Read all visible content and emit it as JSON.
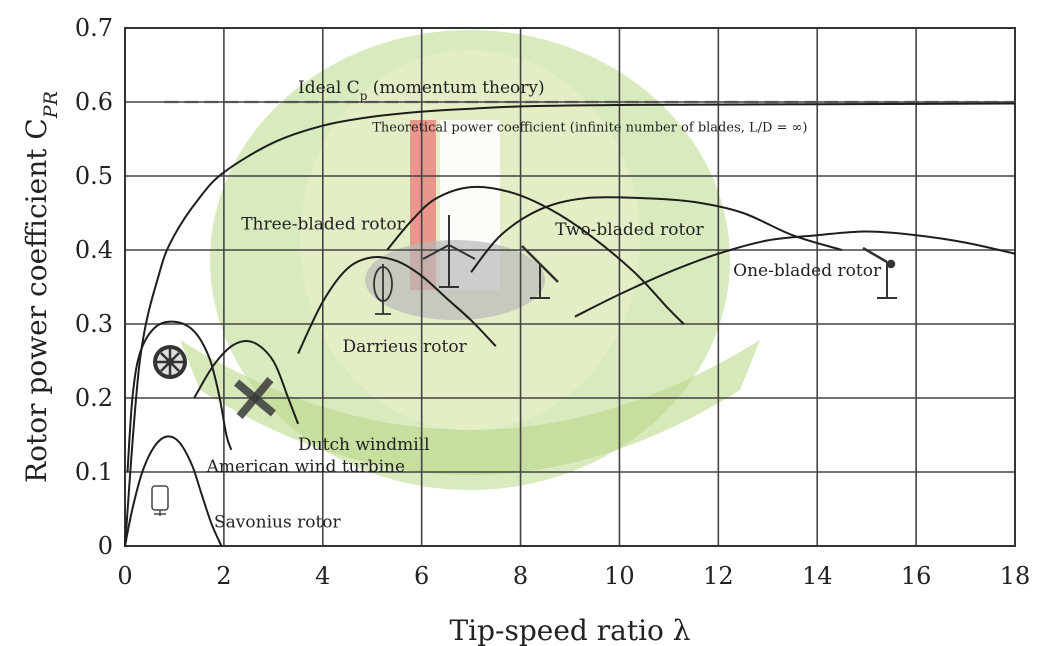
{
  "chart_data": {
    "type": "line",
    "xlabel": "Tip-speed ratio λ",
    "ylabel": "Rotor power coefficient C",
    "ylabel_sub": "PR",
    "xlim": [
      0,
      18
    ],
    "ylim": [
      0,
      0.7
    ],
    "x_ticks": [
      "0",
      "2",
      "4",
      "6",
      "8",
      "10",
      "12",
      "14",
      "16",
      "18"
    ],
    "y_ticks": [
      "0",
      "0.1",
      "0.2",
      "0.3",
      "0.4",
      "0.5",
      "0.6",
      "0.7"
    ],
    "grid": true,
    "reference_lines": [
      {
        "label": "Ideal C",
        "label_sub": "p",
        "label_rest": " (momentum theory)",
        "y": 0.6,
        "style": "dashed"
      }
    ],
    "series": [
      {
        "name": "Theoretical power coefficient (infinite number of blades, L/D = ∞)",
        "points": [
          [
            0,
            0
          ],
          [
            0.3,
            0.25
          ],
          [
            0.7,
            0.37
          ],
          [
            1,
            0.42
          ],
          [
            1.5,
            0.47
          ],
          [
            2,
            0.505
          ],
          [
            3,
            0.545
          ],
          [
            4,
            0.568
          ],
          [
            5,
            0.58
          ],
          [
            6,
            0.587
          ],
          [
            7,
            0.591
          ],
          [
            8,
            0.594
          ],
          [
            10,
            0.596
          ],
          [
            14,
            0.597
          ],
          [
            18,
            0.598
          ]
        ]
      },
      {
        "name": "Savonius rotor",
        "points": [
          [
            0,
            0
          ],
          [
            0.15,
            0.05
          ],
          [
            0.35,
            0.1
          ],
          [
            0.6,
            0.135
          ],
          [
            0.85,
            0.148
          ],
          [
            1.1,
            0.14
          ],
          [
            1.35,
            0.11
          ],
          [
            1.55,
            0.07
          ],
          [
            1.75,
            0.03
          ],
          [
            1.95,
            0
          ]
        ]
      },
      {
        "name": "American wind turbine",
        "points": [
          [
            0.05,
            0.1
          ],
          [
            0.15,
            0.2
          ],
          [
            0.3,
            0.26
          ],
          [
            0.6,
            0.295
          ],
          [
            1,
            0.303
          ],
          [
            1.4,
            0.29
          ],
          [
            1.7,
            0.255
          ],
          [
            1.9,
            0.205
          ],
          [
            2.05,
            0.15
          ],
          [
            2.15,
            0.13
          ]
        ]
      },
      {
        "name": "Dutch windmill",
        "points": [
          [
            1.4,
            0.2
          ],
          [
            1.8,
            0.245
          ],
          [
            2.2,
            0.272
          ],
          [
            2.6,
            0.275
          ],
          [
            3,
            0.25
          ],
          [
            3.3,
            0.2
          ],
          [
            3.5,
            0.165
          ]
        ]
      },
      {
        "name": "Darrieus rotor",
        "points": [
          [
            3.5,
            0.26
          ],
          [
            4,
            0.33
          ],
          [
            4.5,
            0.375
          ],
          [
            5,
            0.39
          ],
          [
            5.5,
            0.385
          ],
          [
            6,
            0.365
          ],
          [
            6.5,
            0.335
          ],
          [
            7,
            0.305
          ],
          [
            7.5,
            0.27
          ]
        ]
      },
      {
        "name": "Three-bladed rotor",
        "points": [
          [
            5.3,
            0.4
          ],
          [
            5.8,
            0.44
          ],
          [
            6.3,
            0.47
          ],
          [
            7,
            0.485
          ],
          [
            7.8,
            0.478
          ],
          [
            8.6,
            0.455
          ],
          [
            9.4,
            0.42
          ],
          [
            10.3,
            0.37
          ],
          [
            11,
            0.32
          ],
          [
            11.3,
            0.3
          ]
        ]
      },
      {
        "name": "Two-bladed rotor",
        "points": [
          [
            7,
            0.37
          ],
          [
            7.6,
            0.42
          ],
          [
            8.4,
            0.455
          ],
          [
            9.3,
            0.47
          ],
          [
            10.5,
            0.47
          ],
          [
            11.5,
            0.465
          ],
          [
            12.5,
            0.45
          ],
          [
            13.5,
            0.42
          ],
          [
            14.5,
            0.4
          ]
        ]
      },
      {
        "name": "One-bladed rotor",
        "points": [
          [
            9.1,
            0.31
          ],
          [
            10,
            0.34
          ],
          [
            11,
            0.37
          ],
          [
            12,
            0.395
          ],
          [
            13,
            0.413
          ],
          [
            14,
            0.42
          ],
          [
            15,
            0.425
          ],
          [
            16,
            0.42
          ],
          [
            17,
            0.41
          ],
          [
            18,
            0.395
          ]
        ]
      }
    ],
    "annotations": [
      {
        "text": "Ideal C",
        "x": 3.5,
        "y": 0.612
      },
      {
        "text": "Theoretical power coefficient (infinite number of blades, L/D = ∞)",
        "x": 5,
        "y": 0.56
      },
      {
        "text": "Three-bladed rotor",
        "x": 2.35,
        "y": 0.428
      },
      {
        "text": "Two-bladed rotor",
        "x": 8.7,
        "y": 0.42
      },
      {
        "text": "One-bladed rotor",
        "x": 12.3,
        "y": 0.365
      },
      {
        "text": "Darrieus rotor",
        "x": 4.4,
        "y": 0.262
      },
      {
        "text": "Dutch windmill",
        "x": 3.5,
        "y": 0.13
      },
      {
        "text": "American wind turbine",
        "x": 1.65,
        "y": 0.1
      },
      {
        "text": "Savonius rotor",
        "x": 1.8,
        "y": 0.025
      }
    ],
    "colors": {
      "curve": "#1e1e1e",
      "grid": "#444444",
      "watermark": "#8fbf3c",
      "watermark_red": "#e02020"
    }
  }
}
